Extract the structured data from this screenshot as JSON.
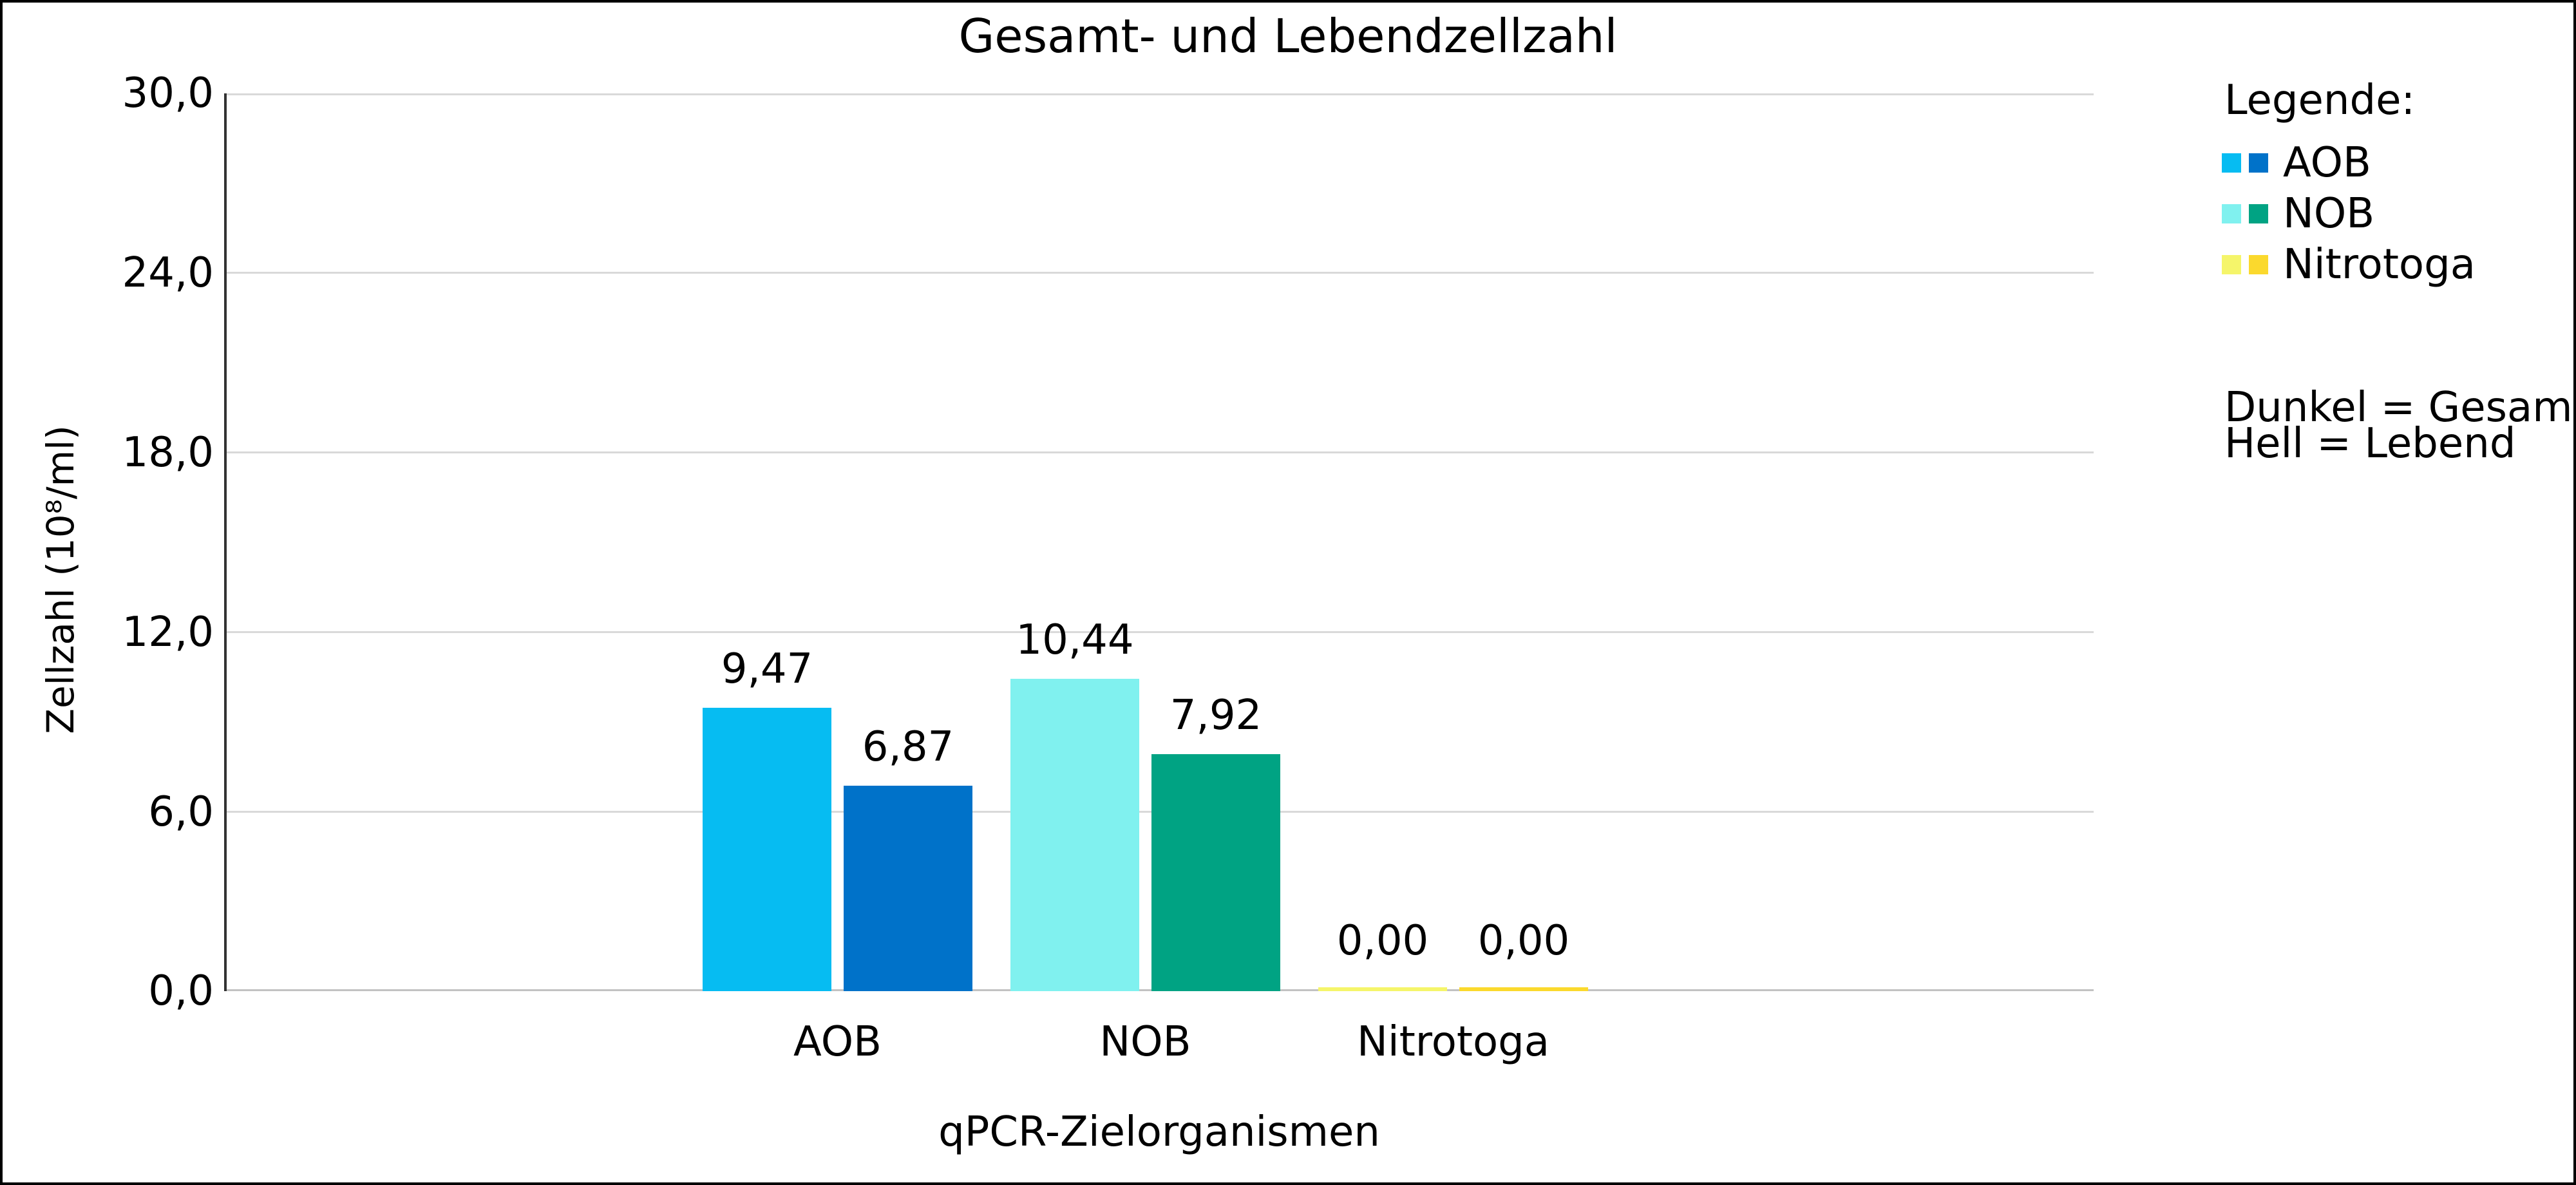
{
  "chart_data": {
    "type": "bar",
    "title": "Gesamt- und Lebendzellzahl",
    "xlabel": "qPCR-Zielorganismen",
    "ylabel": "Zellzahl (10⁸/ml)",
    "ylim": [
      0,
      30
    ],
    "ytick_step": 6,
    "ytick_labels": [
      "30,0",
      "24,0",
      "18,0",
      "12,0",
      "6,0",
      "0,0"
    ],
    "grid": true,
    "legend_position": "right",
    "categories": [
      "AOB",
      "NOB",
      "Nitrotoga"
    ],
    "series": [
      {
        "name": "Hell (Lebend)",
        "values": [
          9.47,
          10.44,
          0.0
        ]
      },
      {
        "name": "Dunkel (Gesamt)",
        "values": [
          6.87,
          7.92,
          0.0
        ]
      }
    ],
    "bars": [
      {
        "category": "AOB",
        "shade": "hell",
        "value": 9.47,
        "label": "9,47",
        "color": "#06bcf2"
      },
      {
        "category": "AOB",
        "shade": "dunkel",
        "value": 6.87,
        "label": "6,87",
        "color": "#0072c9"
      },
      {
        "category": "NOB",
        "shade": "hell",
        "value": 10.44,
        "label": "10,44",
        "color": "#80f1ef"
      },
      {
        "category": "NOB",
        "shade": "dunkel",
        "value": 7.92,
        "label": "7,92",
        "color": "#00a383"
      },
      {
        "category": "Nitrotoga",
        "shade": "hell",
        "value": 0.0,
        "label": "0,00",
        "color": "#f5f56a"
      },
      {
        "category": "Nitrotoga",
        "shade": "dunkel",
        "value": 0.0,
        "label": "0,00",
        "color": "#fbd92d"
      }
    ],
    "value_labels": [
      "9,47",
      "6,87",
      "10,44",
      "7,92",
      "0,00",
      "0,00"
    ],
    "colors": {
      "grid": "#d9d9d9",
      "baseline": "#c2c2c2",
      "axis_line": "#333333",
      "frame_border": "#000000",
      "background": "#ffffff"
    }
  },
  "legend": {
    "heading": "Legende:",
    "items": [
      {
        "label": "AOB",
        "swatch_hell": "#06bcf2",
        "swatch_dunkel": "#0072c9"
      },
      {
        "label": "NOB",
        "swatch_hell": "#80f1ef",
        "swatch_dunkel": "#00a383"
      },
      {
        "label": "Nitrotoga",
        "swatch_hell": "#f5f56a",
        "swatch_dunkel": "#fbd92d"
      }
    ],
    "note_line1": "Dunkel = Gesamt",
    "note_line2": "Hell = Lebend"
  }
}
